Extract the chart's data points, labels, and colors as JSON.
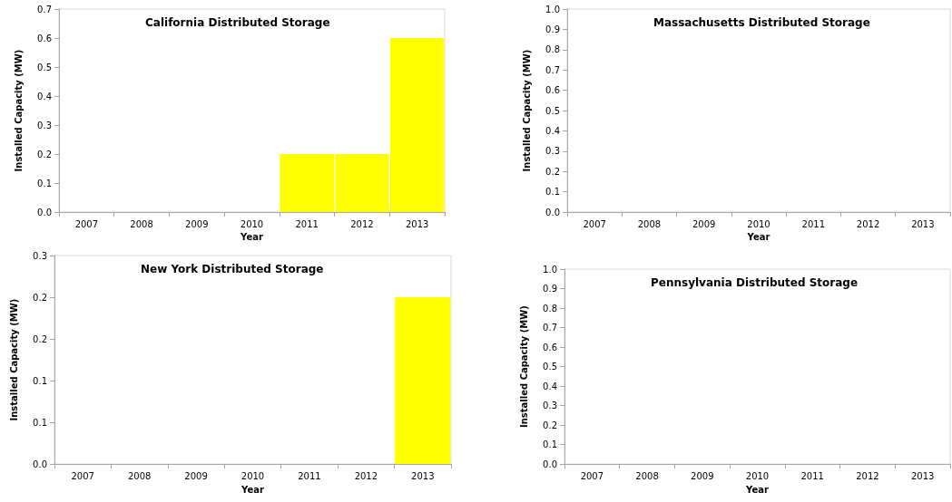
{
  "chart_data": [
    {
      "type": "bar",
      "title": "California Distributed Storage",
      "xlabel": "Year",
      "ylabel": "Installed Capacity (MW)",
      "categories": [
        "2007",
        "2008",
        "2009",
        "2010",
        "2011",
        "2012",
        "2013"
      ],
      "values": [
        0,
        0,
        0,
        0,
        0.2,
        0.2,
        0.6
      ],
      "color": "#ffff00",
      "ylim": [
        0,
        0.7
      ],
      "yticks": [
        {
          "value": 0,
          "label": "0.0"
        },
        0.1,
        0.2,
        0.3,
        0.4,
        0.5,
        0.6,
        0.7
      ],
      "grid": false
    },
    {
      "type": "bar",
      "title": "Massachusetts Distributed Storage",
      "xlabel": "Year",
      "ylabel": "Installed Capacity (MW)",
      "categories": [
        "2007",
        "2008",
        "2009",
        "2010",
        "2011",
        "2012",
        "2013"
      ],
      "values": [
        0,
        0,
        0,
        0,
        0,
        0,
        0
      ],
      "color": "#ffff00",
      "ylim": [
        0,
        1
      ],
      "yticks": [
        {
          "value": 0,
          "label": "0.0"
        },
        0.1,
        0.2,
        0.3,
        0.4,
        0.5,
        0.6,
        0.7,
        0.8,
        0.9,
        {
          "value": 1,
          "label": "1.0"
        }
      ],
      "grid": false
    },
    {
      "type": "bar",
      "title": "New York Distributed Storage",
      "xlabel": "Year",
      "ylabel": "Installed Capacity (MW)",
      "categories": [
        "2007",
        "2008",
        "2009",
        "2010",
        "2011",
        "2012",
        "2013"
      ],
      "values": [
        0,
        0,
        0,
        0,
        0,
        0,
        0.24
      ],
      "color": "#ffff00",
      "ylim": [
        0,
        0.3
      ],
      "yticks": [
        {
          "value": 0,
          "label": "0.0"
        },
        {
          "value": 0.06,
          "label": "0.1"
        },
        {
          "value": 0.12,
          "label": "0.1"
        },
        {
          "value": 0.18,
          "label": "0.2"
        },
        {
          "value": 0.24,
          "label": "0.2"
        },
        {
          "value": 0.3,
          "label": "0.3"
        }
      ],
      "grid": false
    },
    {
      "type": "bar",
      "title": "Pennsylvania Distributed Storage",
      "xlabel": "Year",
      "ylabel": "Installed Capacity (MW)",
      "categories": [
        "2007",
        "2008",
        "2009",
        "2010",
        "2011",
        "2012",
        "2013"
      ],
      "values": [
        0,
        0,
        0,
        0,
        0,
        0,
        0
      ],
      "color": "#ffff00",
      "ylim": [
        0,
        1
      ],
      "yticks": [
        {
          "value": 0,
          "label": "0.0"
        },
        0.1,
        0.2,
        0.3,
        0.4,
        0.5,
        0.6,
        0.7,
        0.8,
        0.9,
        {
          "value": 1,
          "label": "1.0"
        }
      ],
      "grid": false
    }
  ]
}
